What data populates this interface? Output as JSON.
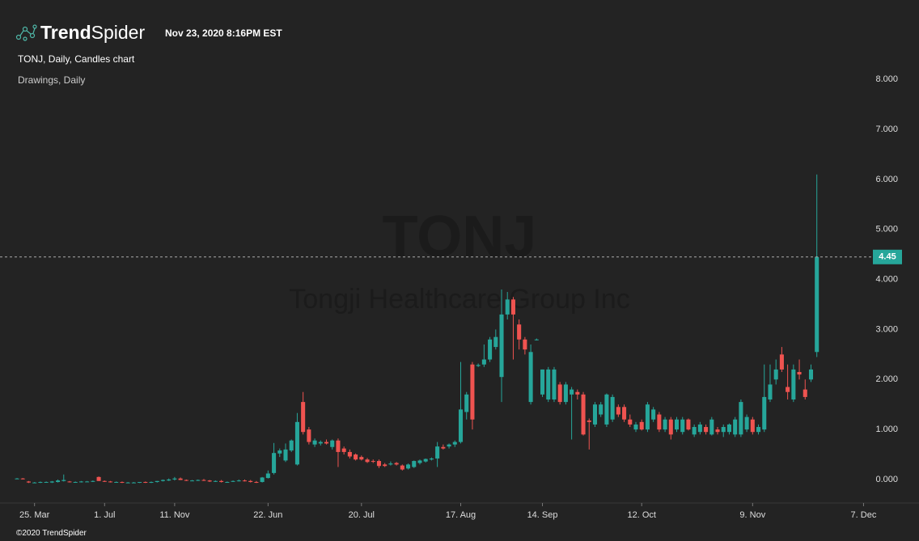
{
  "header": {
    "logo_bold": "Trend",
    "logo_light": "Spider",
    "timestamp": "Nov 23, 2020 8:16PM EST",
    "chart_title": "TONJ, Daily, Candles chart",
    "subtitle": "Drawings, Daily",
    "copyright": "©2020 TrendSpider"
  },
  "chart_data": {
    "type": "candlestick",
    "watermark": "TONJ",
    "watermark_sub": "Tongji Healthcare Group Inc",
    "up_color": "#26a69a",
    "down_color": "#ef5350",
    "last_price": {
      "value": 4.45,
      "label": "4.45",
      "color": "#26a69a"
    },
    "xlim": [
      -2.5,
      154.5
    ],
    "ylim": [
      -0.47,
      8.7
    ],
    "xticks": [
      {
        "value": 3,
        "label": "25. Mar"
      },
      {
        "value": 15,
        "label": "1. Jul"
      },
      {
        "value": 27,
        "label": "11. Nov"
      },
      {
        "value": 43,
        "label": "22. Jun"
      },
      {
        "value": 59,
        "label": "20. Jul"
      },
      {
        "value": 76,
        "label": "17. Aug"
      },
      {
        "value": 90,
        "label": "14. Sep"
      },
      {
        "value": 107,
        "label": "12. Oct"
      },
      {
        "value": 126,
        "label": "9. Nov"
      },
      {
        "value": 145,
        "label": "7. Dec"
      }
    ],
    "yticks": [
      {
        "value": 0,
        "label": "0.000"
      },
      {
        "value": 1,
        "label": "1.000"
      },
      {
        "value": 2,
        "label": "2.000"
      },
      {
        "value": 3,
        "label": "3.000"
      },
      {
        "value": 4,
        "label": "4.000"
      },
      {
        "value": 5,
        "label": "5.000"
      },
      {
        "value": 6,
        "label": "6.000"
      },
      {
        "value": 7,
        "label": "7.000"
      },
      {
        "value": 8,
        "label": "8.000"
      }
    ],
    "candles": [
      [
        0.02,
        0.03,
        0.01,
        0.02
      ],
      [
        0.02,
        0.03,
        0.0,
        0.01
      ],
      [
        -0.04,
        -0.03,
        -0.07,
        -0.06
      ],
      [
        -0.06,
        -0.05,
        -0.07,
        -0.06
      ],
      [
        -0.06,
        -0.04,
        -0.07,
        -0.05
      ],
      [
        -0.05,
        -0.04,
        -0.06,
        -0.05
      ],
      [
        -0.06,
        -0.03,
        -0.07,
        -0.04
      ],
      [
        -0.05,
        0.0,
        -0.06,
        -0.02
      ],
      [
        -0.03,
        0.1,
        -0.04,
        -0.01
      ],
      [
        -0.04,
        -0.03,
        -0.06,
        -0.05
      ],
      [
        -0.05,
        -0.04,
        -0.06,
        -0.05
      ],
      [
        -0.05,
        -0.03,
        -0.06,
        -0.04
      ],
      [
        -0.04,
        -0.03,
        -0.05,
        -0.04
      ],
      [
        -0.04,
        -0.02,
        -0.05,
        -0.03
      ],
      [
        0.05,
        0.06,
        -0.03,
        -0.03
      ],
      [
        -0.03,
        -0.02,
        -0.05,
        -0.04
      ],
      [
        -0.04,
        -0.03,
        -0.06,
        -0.05
      ],
      [
        -0.05,
        -0.04,
        -0.06,
        -0.05
      ],
      [
        -0.05,
        -0.04,
        -0.07,
        -0.06
      ],
      [
        -0.06,
        -0.05,
        -0.07,
        -0.06
      ],
      [
        -0.06,
        -0.05,
        -0.07,
        -0.06
      ],
      [
        -0.06,
        -0.05,
        -0.07,
        -0.05
      ],
      [
        -0.05,
        -0.04,
        -0.07,
        -0.06
      ],
      [
        -0.06,
        -0.04,
        -0.07,
        -0.05
      ],
      [
        -0.05,
        -0.03,
        -0.06,
        -0.03
      ],
      [
        -0.03,
        0.0,
        -0.04,
        -0.01
      ],
      [
        -0.02,
        0.02,
        -0.03,
        0.0
      ],
      [
        0.0,
        0.05,
        -0.02,
        0.02
      ],
      [
        0.02,
        0.04,
        -0.01,
        -0.01
      ],
      [
        -0.01,
        0.0,
        -0.03,
        -0.02
      ],
      [
        -0.02,
        -0.01,
        -0.03,
        -0.02
      ],
      [
        -0.02,
        0.0,
        -0.03,
        -0.01
      ],
      [
        -0.01,
        0.01,
        -0.03,
        -0.02
      ],
      [
        -0.02,
        -0.01,
        -0.05,
        -0.04
      ],
      [
        -0.04,
        -0.02,
        -0.05,
        -0.03
      ],
      [
        -0.03,
        -0.01,
        -0.06,
        -0.05
      ],
      [
        -0.05,
        -0.04,
        -0.06,
        -0.05
      ],
      [
        -0.04,
        -0.02,
        -0.05,
        -0.03
      ],
      [
        -0.03,
        0.0,
        -0.04,
        -0.02
      ],
      [
        -0.02,
        0.0,
        -0.04,
        -0.03
      ],
      [
        -0.03,
        -0.01,
        -0.06,
        -0.05
      ],
      [
        -0.05,
        -0.03,
        -0.07,
        -0.06
      ],
      [
        -0.05,
        0.05,
        -0.06,
        0.04
      ],
      [
        0.03,
        0.18,
        0.02,
        0.12
      ],
      [
        0.13,
        0.73,
        0.1,
        0.53
      ],
      [
        0.52,
        0.62,
        0.45,
        0.58
      ],
      [
        0.38,
        0.72,
        0.35,
        0.6
      ],
      [
        0.58,
        0.8,
        0.55,
        0.78
      ],
      [
        0.3,
        1.33,
        0.28,
        1.15
      ],
      [
        1.55,
        1.75,
        0.9,
        0.95
      ],
      [
        1.0,
        1.05,
        0.7,
        0.75
      ],
      [
        0.7,
        0.82,
        0.65,
        0.78
      ],
      [
        0.72,
        0.78,
        0.68,
        0.75
      ],
      [
        0.75,
        0.8,
        0.7,
        0.72
      ],
      [
        0.65,
        0.8,
        0.6,
        0.78
      ],
      [
        0.78,
        0.82,
        0.25,
        0.55
      ],
      [
        0.62,
        0.66,
        0.5,
        0.55
      ],
      [
        0.55,
        0.6,
        0.42,
        0.46
      ],
      [
        0.5,
        0.52,
        0.38,
        0.4
      ],
      [
        0.45,
        0.48,
        0.38,
        0.4
      ],
      [
        0.4,
        0.43,
        0.33,
        0.35
      ],
      [
        0.37,
        0.4,
        0.33,
        0.36
      ],
      [
        0.37,
        0.4,
        0.23,
        0.27
      ],
      [
        0.3,
        0.33,
        0.25,
        0.27
      ],
      [
        0.3,
        0.36,
        0.28,
        0.32
      ],
      [
        0.33,
        0.35,
        0.28,
        0.3
      ],
      [
        0.28,
        0.3,
        0.18,
        0.2
      ],
      [
        0.22,
        0.32,
        0.2,
        0.3
      ],
      [
        0.25,
        0.38,
        0.23,
        0.37
      ],
      [
        0.33,
        0.4,
        0.3,
        0.38
      ],
      [
        0.36,
        0.42,
        0.34,
        0.41
      ],
      [
        0.4,
        0.44,
        0.38,
        0.42
      ],
      [
        0.42,
        0.75,
        0.25,
        0.66
      ],
      [
        0.65,
        0.7,
        0.6,
        0.62
      ],
      [
        0.66,
        0.72,
        0.62,
        0.7
      ],
      [
        0.7,
        0.78,
        0.65,
        0.75
      ],
      [
        0.75,
        2.35,
        0.72,
        1.4
      ],
      [
        1.35,
        1.75,
        1.2,
        1.7
      ],
      [
        2.3,
        2.35,
        1.0,
        1.2
      ],
      [
        2.27,
        2.32,
        2.25,
        2.29
      ],
      [
        2.3,
        2.7,
        2.25,
        2.4
      ],
      [
        2.4,
        2.85,
        2.35,
        2.8
      ],
      [
        2.65,
        3.0,
        2.6,
        2.85
      ],
      [
        2.05,
        3.8,
        1.55,
        3.3
      ],
      [
        3.3,
        3.75,
        3.2,
        3.6
      ],
      [
        3.6,
        3.65,
        2.4,
        3.3
      ],
      [
        3.1,
        3.2,
        2.6,
        2.8
      ],
      [
        2.8,
        2.85,
        2.5,
        2.6
      ],
      [
        1.55,
        2.7,
        1.5,
        2.55
      ],
      [
        2.8,
        2.82,
        2.78,
        2.8
      ],
      [
        1.7,
        2.2,
        1.65,
        2.2
      ],
      [
        1.6,
        2.25,
        1.55,
        2.2
      ],
      [
        1.6,
        2.25,
        1.55,
        2.2
      ],
      [
        1.9,
        1.95,
        1.5,
        1.55
      ],
      [
        1.55,
        1.95,
        1.5,
        1.9
      ],
      [
        1.7,
        1.85,
        0.8,
        1.8
      ],
      [
        1.75,
        1.8,
        1.6,
        1.7
      ],
      [
        1.7,
        1.75,
        0.88,
        0.9
      ],
      [
        1.18,
        1.22,
        0.6,
        1.15
      ],
      [
        1.1,
        1.55,
        1.05,
        1.5
      ],
      [
        1.3,
        1.55,
        1.25,
        1.5
      ],
      [
        1.1,
        1.72,
        1.05,
        1.7
      ],
      [
        1.2,
        1.7,
        1.15,
        1.65
      ],
      [
        1.45,
        1.5,
        1.25,
        1.3
      ],
      [
        1.45,
        1.5,
        1.15,
        1.2
      ],
      [
        1.2,
        1.3,
        1.05,
        1.1
      ],
      [
        1.0,
        1.15,
        0.95,
        1.1
      ],
      [
        1.15,
        1.2,
        0.98,
        1.0
      ],
      [
        1.0,
        1.55,
        0.95,
        1.5
      ],
      [
        1.2,
        1.45,
        1.15,
        1.4
      ],
      [
        1.3,
        1.35,
        0.95,
        1.0
      ],
      [
        1.0,
        1.25,
        0.95,
        1.2
      ],
      [
        1.2,
        1.25,
        0.8,
        0.9
      ],
      [
        1.0,
        1.25,
        0.95,
        1.2
      ],
      [
        0.95,
        1.25,
        0.9,
        1.2
      ],
      [
        1.2,
        1.22,
        0.98,
        1.0
      ],
      [
        0.9,
        1.1,
        0.85,
        1.05
      ],
      [
        0.95,
        1.15,
        0.9,
        1.1
      ],
      [
        1.05,
        1.1,
        0.9,
        0.95
      ],
      [
        0.9,
        1.25,
        0.88,
        1.2
      ],
      [
        1.0,
        1.05,
        0.9,
        0.95
      ],
      [
        0.95,
        1.1,
        0.85,
        1.05
      ],
      [
        0.95,
        1.12,
        0.9,
        1.1
      ],
      [
        0.9,
        1.25,
        0.85,
        1.2
      ],
      [
        0.9,
        1.6,
        0.85,
        1.55
      ],
      [
        1.0,
        1.3,
        0.95,
        1.25
      ],
      [
        1.2,
        1.25,
        0.9,
        0.95
      ],
      [
        0.95,
        1.1,
        0.9,
        1.05
      ],
      [
        1.0,
        2.3,
        0.95,
        1.65
      ],
      [
        1.6,
        2.3,
        1.55,
        1.9
      ],
      [
        2.0,
        2.4,
        1.9,
        2.2
      ],
      [
        2.5,
        2.65,
        2.15,
        2.2
      ],
      [
        1.85,
        2.3,
        1.6,
        1.75
      ],
      [
        1.6,
        2.3,
        1.55,
        2.2
      ],
      [
        2.15,
        2.4,
        2.0,
        2.1
      ],
      [
        1.8,
        2.0,
        1.6,
        1.65
      ],
      [
        2.0,
        2.3,
        1.95,
        2.2
      ],
      [
        2.55,
        6.1,
        2.45,
        4.45
      ]
    ]
  }
}
